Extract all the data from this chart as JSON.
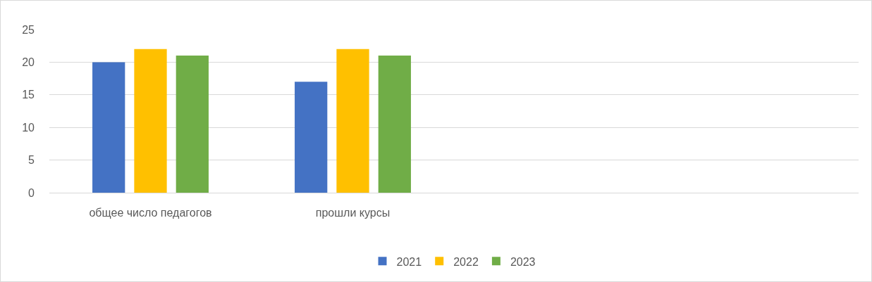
{
  "chart_data": {
    "type": "bar",
    "categories": [
      "общее число педагогов",
      "прошли курсы",
      null,
      null
    ],
    "series": [
      {
        "name": "2021",
        "color": "#4472c4",
        "values": [
          20,
          17,
          null,
          null
        ]
      },
      {
        "name": "2022",
        "color": "#ffc000",
        "values": [
          22,
          22,
          null,
          null
        ]
      },
      {
        "name": "2023",
        "color": "#70ad47",
        "values": [
          21,
          21,
          null,
          null
        ]
      }
    ],
    "ylim": [
      0,
      25
    ],
    "yticks": [
      0,
      5,
      10,
      15,
      20,
      25
    ],
    "grid": "y",
    "legend": "bottom"
  }
}
